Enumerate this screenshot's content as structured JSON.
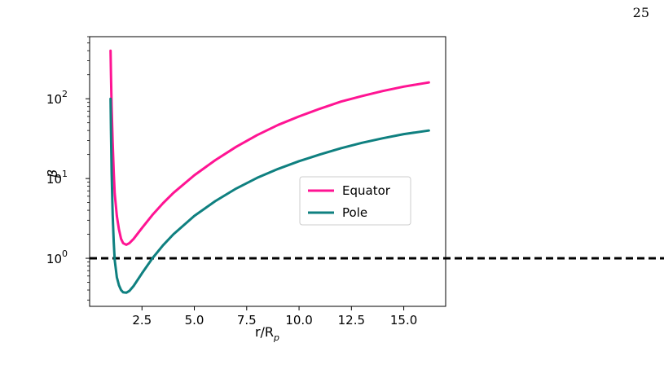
{
  "page": {
    "number": "25"
  },
  "chart_data": {
    "type": "line",
    "xlabel": "r/R",
    "xlabel_sub": "p",
    "ylabel": "β",
    "xlim": [
      0.0,
      17.0
    ],
    "ylim": [
      0.25,
      600
    ],
    "yscale": "log",
    "xticks": [
      2.5,
      5.0,
      7.5,
      10.0,
      12.5,
      15.0
    ],
    "xtick_labels": [
      "2.5",
      "5.0",
      "7.5",
      "10.0",
      "12.5",
      "15.0"
    ],
    "yticks": [
      {
        "value": 1,
        "base": "10",
        "exp": "0"
      },
      {
        "value": 10,
        "base": "10",
        "exp": "1"
      },
      {
        "value": 100,
        "base": "10",
        "exp": "2"
      }
    ],
    "legend_position": "center-right",
    "reference_line": {
      "y": 1,
      "style": "dashed",
      "color": "#000000"
    },
    "series": [
      {
        "name": "Equator",
        "color": "#ff1493",
        "x": [
          1.0,
          1.02,
          1.05,
          1.1,
          1.15,
          1.2,
          1.3,
          1.4,
          1.5,
          1.6,
          1.75,
          1.9,
          2.1,
          2.5,
          3.0,
          3.5,
          4.0,
          5.0,
          6.0,
          7.0,
          8.0,
          9.0,
          10.0,
          11.0,
          12.0,
          13.0,
          14.0,
          15.0,
          16.2
        ],
        "y": [
          400,
          200,
          80,
          28,
          12,
          6.5,
          3.4,
          2.3,
          1.75,
          1.55,
          1.48,
          1.55,
          1.75,
          2.4,
          3.5,
          4.9,
          6.6,
          11,
          17,
          25,
          35,
          47,
          60,
          75,
          92,
          108,
          125,
          142,
          160
        ]
      },
      {
        "name": "Pole",
        "color": "#0f8080",
        "x": [
          1.0,
          1.02,
          1.05,
          1.1,
          1.15,
          1.2,
          1.3,
          1.4,
          1.5,
          1.6,
          1.75,
          1.9,
          2.1,
          2.5,
          3.0,
          3.5,
          4.0,
          5.0,
          6.0,
          7.0,
          8.0,
          9.0,
          10.0,
          11.0,
          12.0,
          13.0,
          14.0,
          15.0,
          16.2
        ],
        "y": [
          100,
          40,
          12,
          3.5,
          1.6,
          0.95,
          0.58,
          0.46,
          0.4,
          0.375,
          0.37,
          0.39,
          0.45,
          0.65,
          1.0,
          1.45,
          2.0,
          3.4,
          5.2,
          7.5,
          10.2,
          13.2,
          16.5,
          20,
          24,
          28,
          32,
          36,
          40
        ]
      }
    ]
  }
}
